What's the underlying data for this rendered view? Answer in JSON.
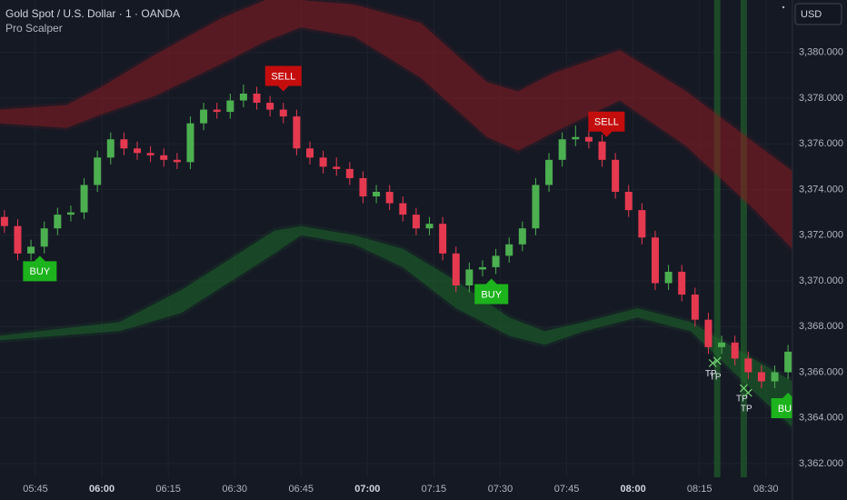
{
  "chart_data": {
    "type": "candlestick",
    "title": "Gold Spot / U.S. Dollar · 1 · OANDA",
    "subtitle": "Pro Scalper",
    "currency": "USD",
    "up_color": "#4caf50",
    "down_color": "#e53950",
    "xlim": [
      "05:37",
      "08:36"
    ],
    "ylim": [
      3361.4,
      3382.3
    ],
    "xticks": [
      "05:45",
      "06:00",
      "06:15",
      "06:30",
      "06:45",
      "07:00",
      "07:15",
      "07:30",
      "07:45",
      "08:00",
      "08:15",
      "08:30"
    ],
    "yticks": [
      {
        "value": 3362,
        "label": "3,362.000"
      },
      {
        "value": 3364,
        "label": "3,364.000"
      },
      {
        "value": 3366,
        "label": "3,366.000"
      },
      {
        "value": 3368,
        "label": "3,368.000"
      },
      {
        "value": 3370,
        "label": "3,370.000"
      },
      {
        "value": 3372,
        "label": "3,372.000"
      },
      {
        "value": 3374,
        "label": "3,374.000"
      },
      {
        "value": 3376,
        "label": "3,376.000"
      },
      {
        "value": 3378,
        "label": "3,378.000"
      },
      {
        "value": 3380,
        "label": "3,380.000"
      }
    ],
    "grid": true,
    "x": [
      "05:38",
      "05:41",
      "05:44",
      "05:47",
      "05:50",
      "05:53",
      "05:56",
      "05:59",
      "06:02",
      "06:05",
      "06:08",
      "06:11",
      "06:14",
      "06:17",
      "06:20",
      "06:23",
      "06:26",
      "06:29",
      "06:32",
      "06:35",
      "06:38",
      "06:41",
      "06:44",
      "06:47",
      "06:50",
      "06:53",
      "06:56",
      "06:59",
      "07:02",
      "07:05",
      "07:08",
      "07:11",
      "07:14",
      "07:17",
      "07:20",
      "07:23",
      "07:26",
      "07:29",
      "07:32",
      "07:35",
      "07:38",
      "07:41",
      "07:44",
      "07:47",
      "07:50",
      "07:53",
      "07:56",
      "07:59",
      "08:02",
      "08:05",
      "08:08",
      "08:11",
      "08:14",
      "08:17",
      "08:20",
      "08:23",
      "08:26",
      "08:29",
      "08:32",
      "08:35"
    ],
    "open": [
      3372.8,
      3372.4,
      3371.2,
      3371.5,
      3372.3,
      3372.9,
      3373.0,
      3374.2,
      3375.4,
      3376.2,
      3375.8,
      3375.6,
      3375.5,
      3375.3,
      3375.2,
      3376.9,
      3377.5,
      3377.4,
      3377.9,
      3378.2,
      3377.8,
      3377.5,
      3377.2,
      3375.8,
      3375.4,
      3375.0,
      3374.9,
      3374.5,
      3373.7,
      3373.9,
      3373.4,
      3372.9,
      3372.3,
      3372.5,
      3371.2,
      3369.8,
      3370.5,
      3370.6,
      3371.1,
      3371.6,
      3372.3,
      3374.2,
      3375.3,
      3376.2,
      3376.3,
      3376.1,
      3375.3,
      3373.9,
      3373.1,
      3371.9,
      3369.9,
      3370.4,
      3369.4,
      3368.3,
      3367.1,
      3367.3,
      3366.6,
      3366.0,
      3365.6,
      3366.0
    ],
    "high": [
      3373.1,
      3372.7,
      3371.8,
      3372.6,
      3373.2,
      3373.3,
      3374.5,
      3375.7,
      3376.5,
      3376.5,
      3376.1,
      3375.9,
      3375.8,
      3375.6,
      3377.2,
      3377.8,
      3377.8,
      3378.2,
      3378.6,
      3378.5,
      3378.1,
      3377.8,
      3377.5,
      3376.1,
      3375.7,
      3375.4,
      3375.2,
      3374.8,
      3374.2,
      3374.2,
      3373.7,
      3373.2,
      3372.8,
      3372.8,
      3371.5,
      3370.8,
      3370.9,
      3371.4,
      3371.9,
      3372.6,
      3374.5,
      3375.6,
      3376.5,
      3376.8,
      3376.6,
      3376.4,
      3375.6,
      3374.2,
      3373.4,
      3372.2,
      3370.7,
      3370.7,
      3369.7,
      3368.6,
      3367.6,
      3367.6,
      3366.9,
      3366.3,
      3366.3,
      3367.2
    ],
    "low": [
      3372.1,
      3370.9,
      3370.9,
      3371.2,
      3372.0,
      3372.6,
      3372.7,
      3373.9,
      3375.1,
      3375.5,
      3375.3,
      3375.2,
      3375.0,
      3374.9,
      3374.9,
      3376.6,
      3377.1,
      3377.1,
      3377.6,
      3377.5,
      3377.2,
      3376.9,
      3375.5,
      3375.1,
      3374.7,
      3374.6,
      3374.2,
      3373.4,
      3373.4,
      3373.1,
      3372.6,
      3372.0,
      3372.0,
      3370.9,
      3369.5,
      3369.5,
      3370.2,
      3370.3,
      3370.8,
      3371.3,
      3372.0,
      3373.9,
      3375.0,
      3375.9,
      3375.8,
      3375.0,
      3373.6,
      3372.8,
      3371.6,
      3369.6,
      3369.6,
      3369.1,
      3368.0,
      3366.8,
      3366.8,
      3366.3,
      3365.7,
      3365.3,
      3365.3,
      3365.7
    ],
    "close": [
      3372.4,
      3371.2,
      3371.5,
      3372.3,
      3372.9,
      3373.0,
      3374.2,
      3375.4,
      3376.2,
      3375.8,
      3375.6,
      3375.5,
      3375.3,
      3375.2,
      3376.9,
      3377.5,
      3377.4,
      3377.9,
      3378.2,
      3377.8,
      3377.5,
      3377.2,
      3375.8,
      3375.4,
      3375.0,
      3374.9,
      3374.5,
      3373.7,
      3373.9,
      3373.4,
      3372.9,
      3372.3,
      3372.5,
      3371.2,
      3369.8,
      3370.5,
      3370.6,
      3371.1,
      3371.6,
      3372.3,
      3374.2,
      3375.3,
      3376.2,
      3376.3,
      3376.1,
      3375.3,
      3373.9,
      3373.1,
      3371.9,
      3369.9,
      3370.4,
      3369.4,
      3368.3,
      3367.1,
      3367.3,
      3366.6,
      3366.0,
      3365.6,
      3366.0,
      3366.9
    ],
    "bands": [
      {
        "color": "#8e1b22",
        "x": [
          "05:37",
          "05:52",
          "06:00",
          "06:12",
          "06:27",
          "06:37",
          "06:45",
          "06:57",
          "07:12",
          "07:27",
          "07:34",
          "07:42",
          "07:57",
          "08:12",
          "08:27",
          "08:36"
        ],
        "upper": [
          3377.5,
          3377.7,
          3378.5,
          3379.9,
          3381.5,
          3382.3,
          3382.3,
          3382.1,
          3381.3,
          3378.7,
          3378.3,
          3379.1,
          3380.1,
          3378.3,
          3376.1,
          3374.8
        ],
        "lower": [
          3376.9,
          3376.7,
          3377.3,
          3378.1,
          3379.5,
          3380.5,
          3381.1,
          3380.7,
          3378.9,
          3376.3,
          3375.7,
          3376.5,
          3377.9,
          3375.9,
          3373.2,
          3371.4
        ]
      },
      {
        "color": "#1e6b2a",
        "x": [
          "05:37",
          "06:04",
          "06:18",
          "06:39",
          "06:45",
          "06:57",
          "07:08",
          "07:20",
          "07:32",
          "07:40",
          "07:49",
          "08:01",
          "08:13",
          "08:27",
          "08:36"
        ],
        "upper": [
          3367.6,
          3368.2,
          3369.6,
          3372.2,
          3372.4,
          3372.0,
          3371.4,
          3370.0,
          3368.4,
          3367.8,
          3368.2,
          3368.8,
          3368.2,
          3366.6,
          3365.6
        ],
        "lower": [
          3367.4,
          3367.8,
          3368.6,
          3371.2,
          3372.0,
          3371.6,
          3370.6,
          3368.8,
          3367.6,
          3367.2,
          3367.8,
          3368.4,
          3367.8,
          3365.2,
          3363.6
        ]
      }
    ],
    "signals": [
      {
        "label": "BUY",
        "x": "05:46",
        "value": 3371.1,
        "color": "#1db31d"
      },
      {
        "label": "SELL",
        "x": "06:41",
        "value": 3378.3,
        "color": "#c40d0d"
      },
      {
        "label": "BUY",
        "x": "07:28",
        "value": 3370.1,
        "color": "#1db31d"
      },
      {
        "label": "SELL",
        "x": "07:54",
        "value": 3376.3,
        "color": "#c40d0d"
      },
      {
        "label": "BUY",
        "x": "08:35",
        "value": 3365.1,
        "color": "#1db31d"
      }
    ],
    "take_profits": [
      {
        "label": "TP",
        "x": "08:18",
        "value": 3366.4
      },
      {
        "label": "TP",
        "x": "08:19",
        "value": 3366.5
      },
      {
        "label": "TP",
        "x": "08:25",
        "value": 3365.3
      },
      {
        "label": "TP",
        "x": "08:26",
        "value": 3365.1
      }
    ],
    "vlines": [
      "08:19",
      "08:25"
    ],
    "vline_color": "#1f5a2a"
  }
}
